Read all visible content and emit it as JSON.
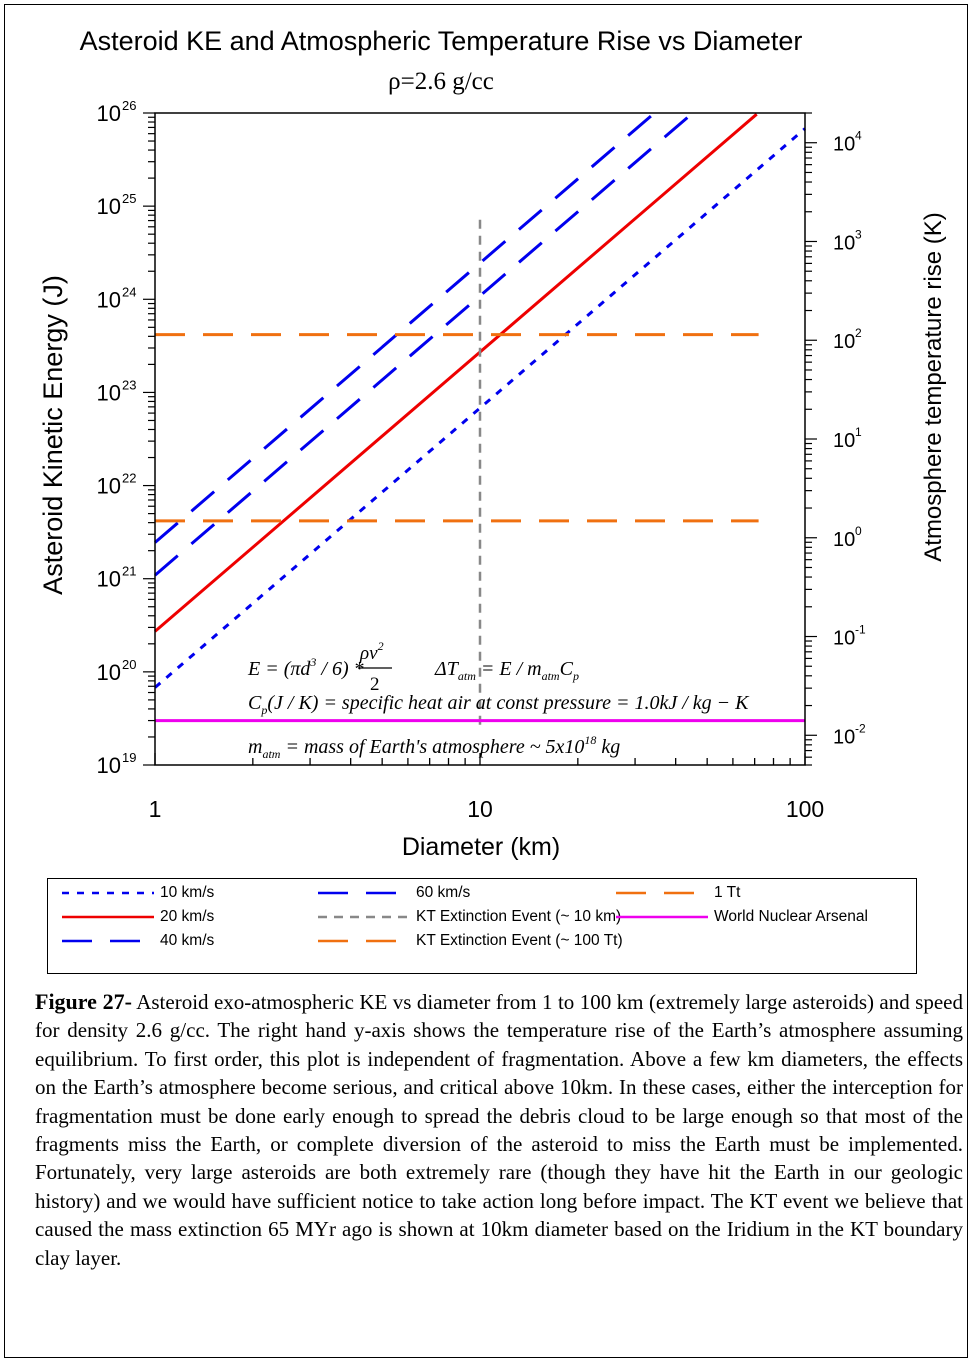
{
  "chart_data": {
    "type": "line",
    "title": "Asteroid KE and Atmospheric Temperature Rise vs Diameter",
    "subtitle_rho": "ρ",
    "subtitle_rest": "=2.6 g/cc",
    "xlabel": "Diameter (km)",
    "ylabel": "Asteroid Kinetic Energy (J)",
    "ylabel_right": "Atmosphere temperature rise (K)",
    "x_scale": "log",
    "y_scale": "log",
    "xlim": [
      1,
      100
    ],
    "ylim": [
      1e+19,
      1e+26
    ],
    "y2lim": [
      0.005,
      20000
    ],
    "x_ticks": [
      {
        "value": 1,
        "label": "1"
      },
      {
        "value": 10,
        "label": "10"
      },
      {
        "value": 100,
        "label": "100"
      }
    ],
    "y_ticks": [
      {
        "exp": 19,
        "base": "10",
        "sup": "19"
      },
      {
        "exp": 20,
        "base": "10",
        "sup": "20"
      },
      {
        "exp": 21,
        "base": "10",
        "sup": "21"
      },
      {
        "exp": 22,
        "base": "10",
        "sup": "22"
      },
      {
        "exp": 23,
        "base": "10",
        "sup": "23"
      },
      {
        "exp": 24,
        "base": "10",
        "sup": "24"
      },
      {
        "exp": 25,
        "base": "10",
        "sup": "25"
      },
      {
        "exp": 26,
        "base": "10",
        "sup": "26"
      }
    ],
    "y2_ticks": [
      {
        "exp": -2,
        "base": "10",
        "sup": "-2"
      },
      {
        "exp": -1,
        "base": "10",
        "sup": "-1"
      },
      {
        "exp": 0,
        "base": "10",
        "sup": "0"
      },
      {
        "exp": 1,
        "base": "10",
        "sup": "1"
      },
      {
        "exp": 2,
        "base": "10",
        "sup": "2"
      },
      {
        "exp": 3,
        "base": "10",
        "sup": "3"
      },
      {
        "exp": 4,
        "base": "10",
        "sup": "4"
      }
    ],
    "series": [
      {
        "name": "10 km/s",
        "color": "#0000ee",
        "dash": "short",
        "x": [
          1,
          100
        ],
        "y": [
          6.8e+19,
          6.8e+25
        ]
      },
      {
        "name": "20 km/s",
        "color": "#ee0000",
        "dash": "solid",
        "x": [
          1,
          71
        ],
        "y": [
          2.72e+20,
          9.7e+25
        ]
      },
      {
        "name": "40 km/s",
        "color": "#0000ee",
        "dash": "long",
        "x": [
          1,
          47
        ],
        "y": [
          1.09e+21,
          1.13e+26
        ]
      },
      {
        "name": "60 km/s",
        "color": "#0000ee",
        "dash": "long",
        "x": [
          1,
          35
        ],
        "y": [
          2.45e+21,
          1.05e+26
        ]
      },
      {
        "name": "KT Extinction Event (~ 10 km)",
        "color": "#888888",
        "dash": "medium",
        "x": [
          10,
          10
        ],
        "y": [
          2.7e+19,
          8e+24
        ]
      },
      {
        "name": "KT Extinction Event (~ 100 Tt)",
        "color": "#f07010",
        "dash": "long",
        "x": [
          1,
          72
        ],
        "y": [
          4.18e+23,
          4.18e+23
        ]
      },
      {
        "name": "1 Tt",
        "color": "#f07010",
        "dash": "long",
        "x": [
          1,
          72
        ],
        "y": [
          4.18e+21,
          4.18e+21
        ]
      },
      {
        "name": "World Nuclear Arsenal",
        "color": "#ee00ee",
        "dash": "solid",
        "x": [
          1,
          100
        ],
        "y": [
          3e+19,
          3e+19
        ]
      }
    ],
    "annotations": {
      "eq1_lhs": "E = (πd",
      "eq1_sup": "3",
      "eq1_mid": " / 6) * ",
      "eq1_num": "ρv",
      "eq1_num_sup": "2",
      "eq1_den": "2",
      "eq2_lhs": "ΔT",
      "eq2_sub": "atm",
      "eq2_mid": " = E / m",
      "eq2_sub2": "atm",
      "eq2_rhs": "C",
      "eq2_sub3": "p",
      "eq3_lhs": "C",
      "eq3_sub": "p",
      "eq3_rest": "(J / K) = specific heat air at const pressure = 1.0kJ / kg − K",
      "eq4_lhs": "m",
      "eq4_sub": "atm",
      "eq4_mid": " = mass of Earth's atmosphere ~ 5x10",
      "eq4_sup": "18",
      "eq4_rhs": " kg"
    }
  },
  "legend": [
    {
      "label": "10 km/s",
      "color": "#0000ee",
      "dash": "short"
    },
    {
      "label": "60 km/s",
      "color": "#0000ee",
      "dash": "long"
    },
    {
      "label": "1 Tt",
      "color": "#f07010",
      "dash": "long"
    },
    {
      "label": "20 km/s",
      "color": "#ee0000",
      "dash": "solid"
    },
    {
      "label": "KT Extinction Event (~ 10 km)",
      "color": "#888888",
      "dash": "medium"
    },
    {
      "label": "World Nuclear Arsenal",
      "color": "#ee00ee",
      "dash": "solid"
    },
    {
      "label": "40 km/s",
      "color": "#0000ee",
      "dash": "long"
    },
    {
      "label": "KT Extinction Event (~ 100 Tt)",
      "color": "#f07010",
      "dash": "long"
    }
  ],
  "caption": {
    "label": "Figure 27-",
    "text": " Asteroid exo-atmospheric KE vs diameter from 1 to 100 km (extremely large asteroids) and speed for density 2.6 g/cc. The right hand y-axis shows the temperature rise of the Earth’s atmosphere assuming equilibrium. To first order, this plot is independent of fragmentation. Above a few km diameters, the effects on the Earth’s atmosphere become serious, and critical above 10km. In these cases, either the interception for fragmentation must be done early enough to spread the debris cloud to be large enough so that most of the fragments miss the Earth, or complete diversion of the asteroid to miss the Earth must be implemented.  Fortunately, very large asteroids are both extremely rare (though they have hit the Earth in our geologic history) and we would have sufficient notice to take action long before impact.  The KT event we believe that caused the mass extinction 65 MYr ago is shown at 10km diameter based on the Iridium in the KT boundary clay layer."
  }
}
